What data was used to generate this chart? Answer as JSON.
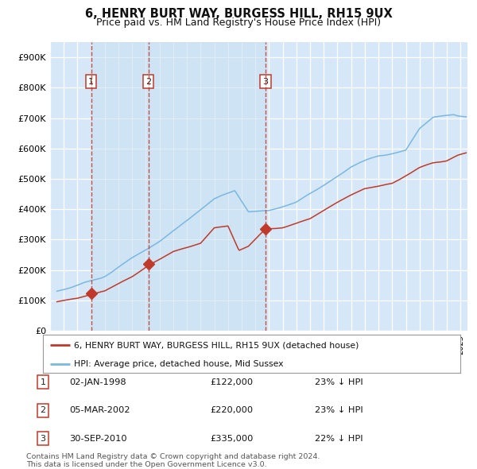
{
  "title": "6, HENRY BURT WAY, BURGESS HILL, RH15 9UX",
  "subtitle": "Price paid vs. HM Land Registry's House Price Index (HPI)",
  "title_fontsize": 10.5,
  "subtitle_fontsize": 9,
  "plot_bg_color": "#d6e8f7",
  "grid_color": "#ffffff",
  "hpi_line_color": "#7ab8e0",
  "price_line_color": "#c0392b",
  "vline_color": "#c0392b",
  "marker_color": "#c0392b",
  "ylim": [
    0,
    950000
  ],
  "yticks": [
    0,
    100000,
    200000,
    300000,
    400000,
    500000,
    600000,
    700000,
    800000,
    900000
  ],
  "ytick_labels": [
    "£0",
    "£100K",
    "£200K",
    "£300K",
    "£400K",
    "£500K",
    "£600K",
    "£700K",
    "£800K",
    "£900K"
  ],
  "transactions": [
    {
      "label": "1",
      "date_str": "02-JAN-1998",
      "year": 1998.0,
      "price": 122000,
      "hpi_pct": "23% ↓ HPI"
    },
    {
      "label": "2",
      "date_str": "05-MAR-2002",
      "year": 2002.18,
      "price": 220000,
      "hpi_pct": "23% ↓ HPI"
    },
    {
      "label": "3",
      "date_str": "30-SEP-2010",
      "year": 2010.75,
      "price": 335000,
      "hpi_pct": "22% ↓ HPI"
    }
  ],
  "legend_entry1": "6, HENRY BURT WAY, BURGESS HILL, RH15 9UX (detached house)",
  "legend_entry2": "HPI: Average price, detached house, Mid Sussex",
  "footnote1": "Contains HM Land Registry data © Crown copyright and database right 2024.",
  "footnote2": "This data is licensed under the Open Government Licence v3.0.",
  "xmin": 1995.5,
  "xmax": 2025.5
}
